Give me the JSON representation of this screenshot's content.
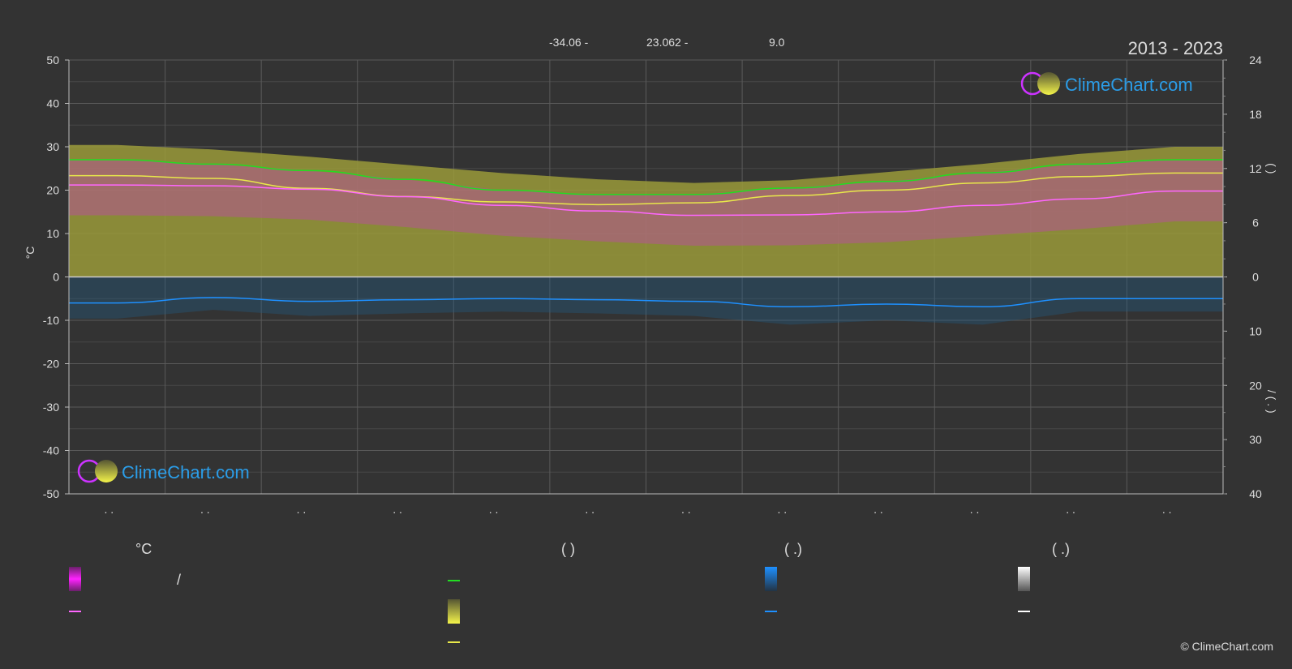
{
  "header": {
    "coords": [
      "-34.06 -",
      "23.062 -",
      "9.0"
    ],
    "year_range": "2013 - 2023"
  },
  "brand": {
    "name": "ClimeChart.com",
    "copyright": "© ClimeChart.com"
  },
  "colors": {
    "background": "#333333",
    "grid": "#555555",
    "daylight": "#22dd22",
    "sunshine": "#e8e84a",
    "sunshine_fill": "#9a9a3a",
    "temp_fill": "#cc33cc",
    "temp_mean": "#ff66ff",
    "precip": "#1e90ff",
    "precip_fill": "#1f5f8a",
    "brand": "#2b9de8"
  },
  "legend": {
    "col1_header": "°C",
    "col2_header": "(          )",
    "col3_header": "(   .)",
    "col4_header": "(   .)",
    "slash": "/"
  },
  "chart_data": {
    "type": "area",
    "x": [
      1,
      2,
      3,
      4,
      5,
      6,
      7,
      8,
      9,
      10,
      11,
      12
    ],
    "x_tick_labels": [
      ". .",
      ". .",
      ". .",
      ". .",
      ". .",
      ". .",
      ". .",
      ". .",
      ". .",
      ". .",
      ". .",
      ". ."
    ],
    "ylabel": "°C",
    "ylim": [
      -50,
      50
    ],
    "y_ticks": [
      50,
      40,
      30,
      20,
      10,
      0,
      -10,
      -20,
      -30,
      -40,
      -50
    ],
    "right_axis_top": {
      "range": [
        0,
        24
      ],
      "ticks": [
        24,
        18,
        12,
        6,
        0
      ],
      "label": "(     )"
    },
    "right_axis_bottom": {
      "range": [
        0,
        40
      ],
      "ticks": [
        0,
        10,
        20,
        30,
        40
      ],
      "label": "/   (  .  )"
    },
    "grid": true,
    "series": [
      {
        "values": [
          14.6,
          14.1,
          13.3,
          12.4,
          11.5,
          10.8,
          10.4,
          10.7,
          11.6,
          12.5,
          13.6,
          14.4
        ]
      },
      {
        "values": [
          11.2,
          10.9,
          9.8,
          8.9,
          8.3,
          8.0,
          8.2,
          9.0,
          9.6,
          10.4,
          11.1,
          11.5
        ]
      },
      {
        "values": [
          21.2,
          21.0,
          20.2,
          18.5,
          16.5,
          15.2,
          14.2,
          14.3,
          15.0,
          16.5,
          18.0,
          19.8
        ]
      },
      {
        "values": [
          27.0,
          26.0,
          24.5,
          22.5,
          20.0,
          19.0,
          19.0,
          20.5,
          22.0,
          24.0,
          26.0,
          27.0
        ]
      },
      {
        "values": [
          4.8,
          3.8,
          4.5,
          4.2,
          4.0,
          4.2,
          4.5,
          5.5,
          5.0,
          5.5,
          4.0,
          4.0
        ]
      }
    ]
  }
}
